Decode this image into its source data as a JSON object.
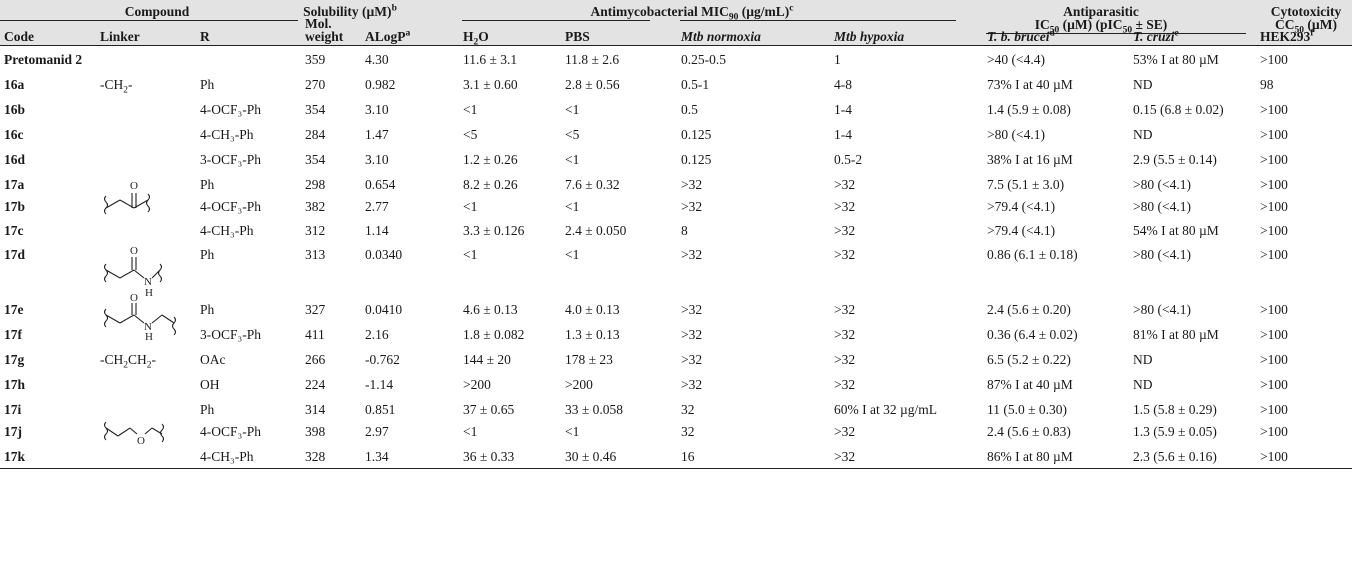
{
  "header": {
    "compound": "Compound",
    "code": "Code",
    "linker": "Linker",
    "r": "R",
    "mol_1": "Mol.",
    "mol_2": "weight",
    "alogp": "ALogP",
    "alogp_sup": "a",
    "sol_label": "Solubility (µM)",
    "sol_sup": "b",
    "h2o_base": "H",
    "h2o_sub": "2",
    "h2o_tail": "O",
    "pbs": "PBS",
    "antimyco_label": "Antimycobacterial MIC",
    "antimyco_sub": "90",
    "antimyco_tail": " (µg/mL)",
    "antimyco_sup": "c",
    "mtb_normoxia": "Mtb normoxia",
    "mtb_hypoxia": "Mtb hypoxia",
    "antipar_1": "Antiparasitic",
    "antipar_2a": "IC",
    "antipar_2sub": "50",
    "antipar_2b": " (µM) (pIC",
    "antipar_2sub2": "50",
    "antipar_2c": " ± SE)",
    "tbb": "T. b. brucei",
    "tbb_sup": "d",
    "tcruzi": "T. cruzi",
    "tcruzi_sup": "e",
    "cyto_1": "Cytotoxicity",
    "cyto_2a": "CC",
    "cyto_2sub": "50",
    "cyto_2b": " (µM)",
    "hek": "HEK293",
    "hek_sup": "f"
  },
  "linkers": {
    "ch2_base": "-CH",
    "ch2_sub": "2",
    "ch2_tail": "-",
    "ch2ch2_a": "-CH",
    "ch2ch2_sub1": "2",
    "ch2ch2_b": "CH",
    "ch2ch2_sub2": "2",
    "ch2ch2_c": "-",
    "atom_o": "O",
    "atom_n": "N",
    "atom_h": "H"
  },
  "rows": [
    {
      "code": "Pretomanid 2",
      "r": "",
      "mw": "359",
      "alogp": "4.30",
      "h2o": "11.6 ± 3.1",
      "pbs": "11.8 ± 2.6",
      "norm": "0.25-0.5",
      "hyp": "1",
      "tbb": ">40 (<4.4)",
      "tcr": "53% I at 80 µM",
      "hek": ">100"
    },
    {
      "code": "16a",
      "r": "Ph",
      "mw": "270",
      "alogp": "0.982",
      "h2o": "3.1 ± 0.60",
      "pbs": "2.8 ± 0.56",
      "norm": "0.5-1",
      "hyp": "4-8",
      "tbb": "73% I at 40 µM",
      "tcr": "ND",
      "hek": "98"
    },
    {
      "code": "16b",
      "r": "4-OCF₃-Ph",
      "mw": "354",
      "alogp": "3.10",
      "h2o": "<1",
      "pbs": "<1",
      "norm": "0.5",
      "hyp": "1-4",
      "tbb": "1.4 (5.9 ± 0.08)",
      "tcr": "0.15 (6.8 ± 0.02)",
      "hek": ">100"
    },
    {
      "code": "16c",
      "r": "4-CH₃-Ph",
      "mw": "284",
      "alogp": "1.47",
      "h2o": "<5",
      "pbs": "<5",
      "norm": "0.125",
      "hyp": "1-4",
      "tbb": ">80 (<4.1)",
      "tcr": "ND",
      "hek": ">100"
    },
    {
      "code": "16d",
      "r": "3-OCF₃-Ph",
      "mw": "354",
      "alogp": "3.10",
      "h2o": "1.2 ± 0.26",
      "pbs": "<1",
      "norm": "0.125",
      "hyp": "0.5-2",
      "tbb": "38% I at 16 µM",
      "tcr": "2.9 (5.5 ± 0.14)",
      "hek": ">100"
    },
    {
      "code": "17a",
      "r": "Ph",
      "mw": "298",
      "alogp": "0.654",
      "h2o": "8.2 ± 0.26",
      "pbs": "7.6 ± 0.32",
      "norm": ">32",
      "hyp": ">32",
      "tbb": "7.5 (5.1 ± 3.0)",
      "tcr": ">80 (<4.1)",
      "hek": ">100"
    },
    {
      "code": "17b",
      "r": "4-OCF₃-Ph",
      "mw": "382",
      "alogp": "2.77",
      "h2o": "<1",
      "pbs": "<1",
      "norm": ">32",
      "hyp": ">32",
      "tbb": ">79.4 (<4.1)",
      "tcr": ">80 (<4.1)",
      "hek": ">100"
    },
    {
      "code": "17c",
      "r": "4-CH₃-Ph",
      "mw": "312",
      "alogp": "1.14",
      "h2o": "3.3 ± 0.126",
      "pbs": "2.4 ± 0.050",
      "norm": "8",
      "hyp": ">32",
      "tbb": ">79.4 (<4.1)",
      "tcr": "54% I at 80 µM",
      "hek": ">100"
    },
    {
      "code": "17d",
      "r": "Ph",
      "mw": "313",
      "alogp": "0.0340",
      "h2o": "<1",
      "pbs": "<1",
      "norm": ">32",
      "hyp": ">32",
      "tbb": "0.86 (6.1 ± 0.18)",
      "tcr": ">80 (<4.1)",
      "hek": ">100"
    },
    {
      "code": "17e",
      "r": "Ph",
      "mw": "327",
      "alogp": "0.0410",
      "h2o": "4.6 ± 0.13",
      "pbs": "4.0 ± 0.13",
      "norm": ">32",
      "hyp": ">32",
      "tbb": "2.4 (5.6 ± 0.20)",
      "tcr": ">80 (<4.1)",
      "hek": ">100"
    },
    {
      "code": "17f",
      "r": "3-OCF₃-Ph",
      "mw": "411",
      "alogp": "2.16",
      "h2o": "1.8 ± 0.082",
      "pbs": "1.3 ± 0.13",
      "norm": ">32",
      "hyp": ">32",
      "tbb": "0.36 (6.4 ± 0.02)",
      "tcr": "81% I at 80 µM",
      "hek": ">100"
    },
    {
      "code": "17g",
      "r": "OAc",
      "mw": "266",
      "alogp": "-0.762",
      "h2o": "144 ± 20",
      "pbs": "178 ± 23",
      "norm": ">32",
      "hyp": ">32",
      "tbb": "6.5 (5.2 ± 0.22)",
      "tcr": "ND",
      "hek": ">100"
    },
    {
      "code": "17h",
      "r": "OH",
      "mw": "224",
      "alogp": "-1.14",
      "h2o": ">200",
      "pbs": ">200",
      "norm": ">32",
      "hyp": ">32",
      "tbb": "87% I at 40 µM",
      "tcr": "ND",
      "hek": ">100"
    },
    {
      "code": "17i",
      "r": "Ph",
      "mw": "314",
      "alogp": "0.851",
      "h2o": "37 ± 0.65",
      "pbs": "33 ± 0.058",
      "norm": "32",
      "hyp": "60% I at 32 µg/mL",
      "tbb": "11 (5.0 ± 0.30)",
      "tcr": "1.5 (5.8 ± 0.29)",
      "hek": ">100"
    },
    {
      "code": "17j",
      "r": "4-OCF₃-Ph",
      "mw": "398",
      "alogp": "2.97",
      "h2o": "<1",
      "pbs": "<1",
      "norm": "32",
      "hyp": ">32",
      "tbb": "2.4 (5.6 ± 0.83)",
      "tcr": "1.3 (5.9 ± 0.05)",
      "hek": ">100"
    },
    {
      "code": "17k",
      "r": "4-CH₃-Ph",
      "mw": "328",
      "alogp": "1.34",
      "h2o": "36 ± 0.33",
      "pbs": "30 ± 0.46",
      "norm": "16",
      "hyp": ">32",
      "tbb": "86% I at 80 µM",
      "tcr": "2.3 (5.6 ± 0.16)",
      "hek": ">100"
    }
  ]
}
